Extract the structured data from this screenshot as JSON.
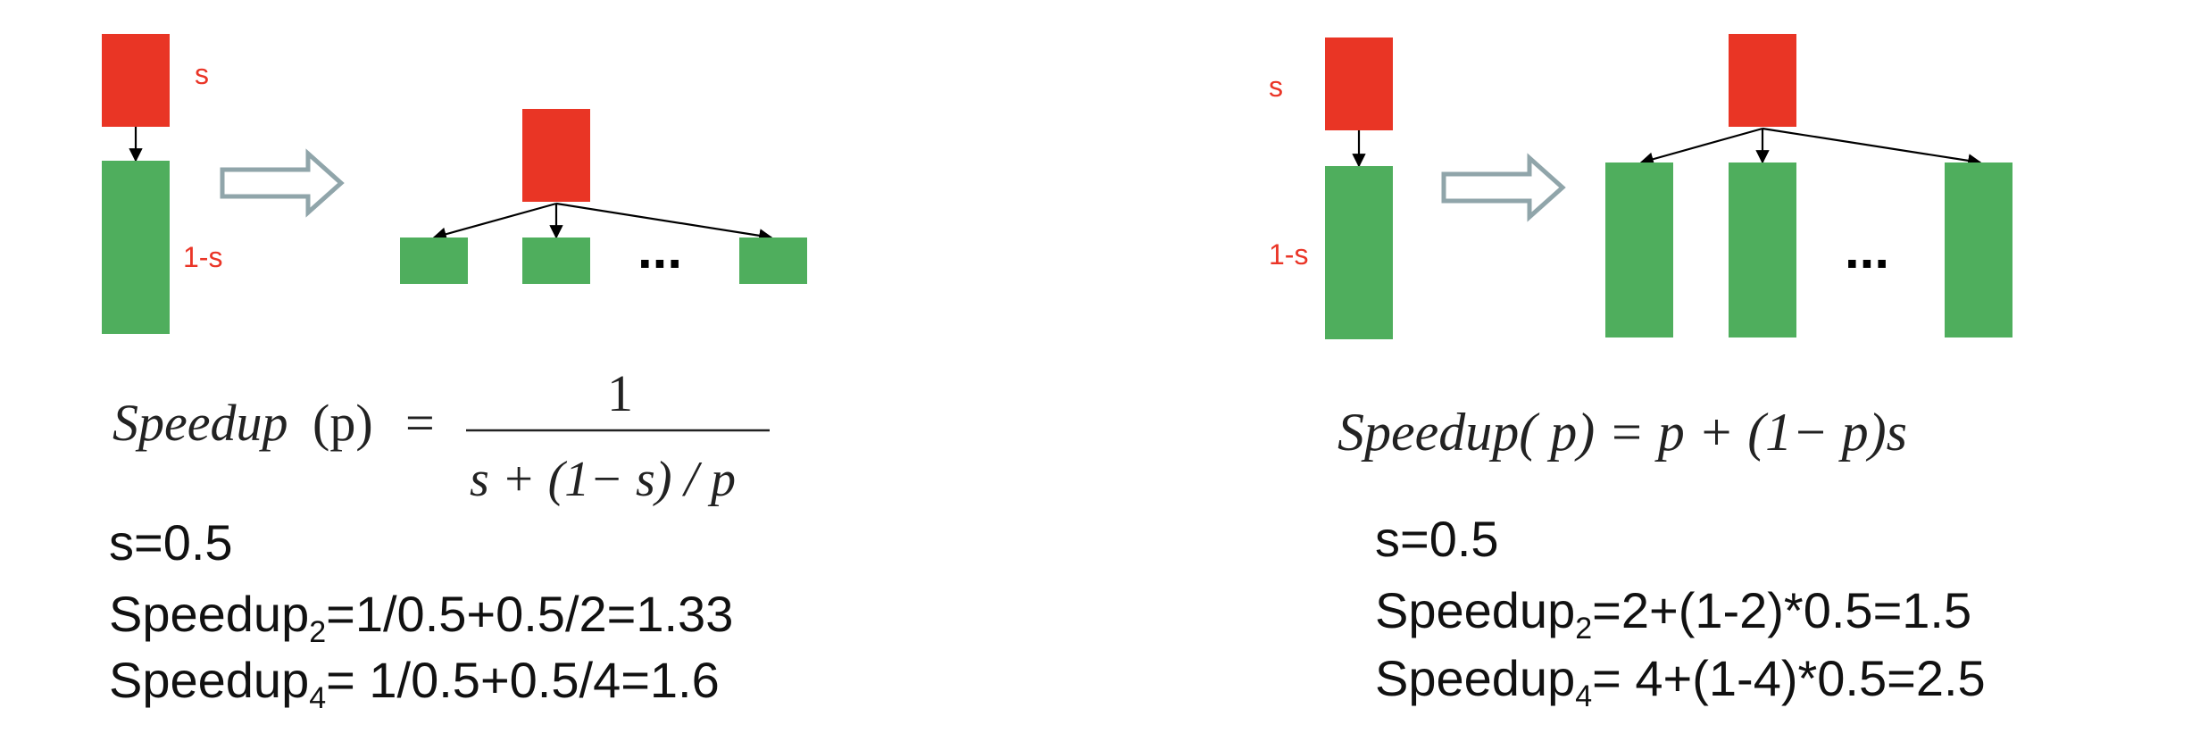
{
  "left": {
    "serial_label": "s",
    "parallel_label": "1-s",
    "ellipsis": "...",
    "formula": {
      "lhs": "Speedup",
      "arg": "(p)",
      "eq": "=",
      "numerator": "1",
      "denominator": "s + (1− s) / p"
    },
    "calc": {
      "s_line": "s=0.5",
      "line2_prefix": "Speedup",
      "line2_sub": "2",
      "line2_rest": "=1/0.5+0.5/2=1.33",
      "line3_prefix": "Speedup",
      "line3_sub": "4",
      "line3_rest": "= 1/0.5+0.5/4=1.6"
    }
  },
  "right": {
    "serial_label": "s",
    "parallel_label": "1-s",
    "ellipsis": "...",
    "formula": {
      "text": "Speedup( p) = p + (1− p)s"
    },
    "calc": {
      "s_line": "s=0.5",
      "line2_prefix": "Speedup",
      "line2_sub": "2",
      "line2_rest": "=2+(1-2)*0.5=1.5",
      "line3_prefix": "Speedup",
      "line3_sub": "4",
      "line3_rest": "= 4+(1-4)*0.5=2.5"
    }
  },
  "colors": {
    "serial": "#e93525",
    "parallel": "#4fae5d",
    "label": "#ea3527",
    "transform_arrow": "#90a5aa"
  }
}
